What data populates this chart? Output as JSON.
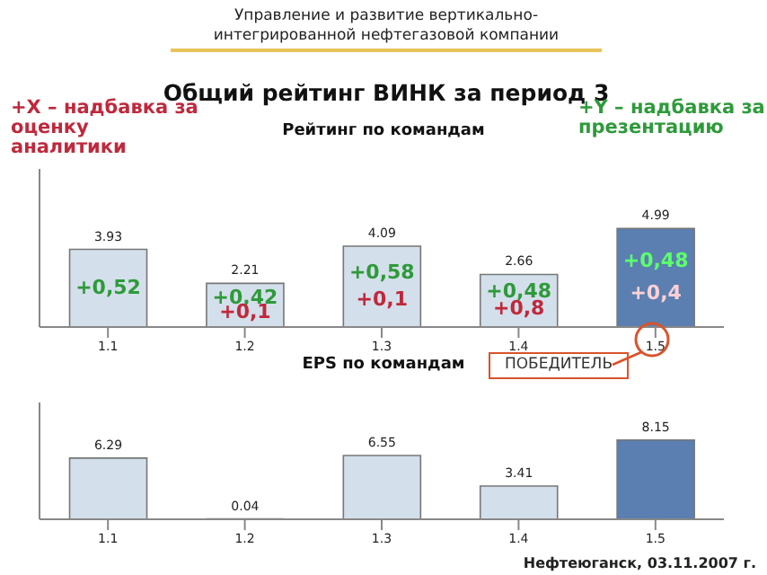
{
  "chart_data": [
    {
      "type": "bar",
      "title": "Рейтинг по командам",
      "categories": [
        "1.1",
        "1.2",
        "1.3",
        "1.4",
        "1.5"
      ],
      "values": [
        3.93,
        2.21,
        4.09,
        2.66,
        4.99
      ],
      "colors": [
        "#d3dfea",
        "#d3dfea",
        "#d3dfea",
        "#d3dfea",
        "#5a7fb0"
      ],
      "data_labels": true,
      "tick_labels": "x",
      "annotations": [
        "Управление и развитие вертикально-интегрированной нефтегазовой компании",
        "Общий рейтинг ВИНК за период 3",
        "+X – надбавка за оценку аналитики",
        "+Y – надбавка за презентацию",
        "ПОБЕДИТЕЛЬ",
        "+0,52",
        "+0,42",
        "+0,1",
        "+0,58",
        "+0,1",
        "+0,48",
        "+0,8",
        "+0,48",
        "+0,4"
      ]
    },
    {
      "type": "bar",
      "title": "EPS по командам",
      "categories": [
        "1.1",
        "1.2",
        "1.3",
        "1.4",
        "1.5"
      ],
      "values": [
        6.29,
        0.04,
        6.55,
        3.41,
        8.15
      ],
      "colors": [
        "#d3dfea",
        "#555555",
        "#d3dfea",
        "#d3dfea",
        "#5a7fb0"
      ],
      "data_labels": true,
      "tick_labels": "x",
      "annotations": [
        "Нефтеюганск, 03.11.2007 г."
      ]
    }
  ]
}
